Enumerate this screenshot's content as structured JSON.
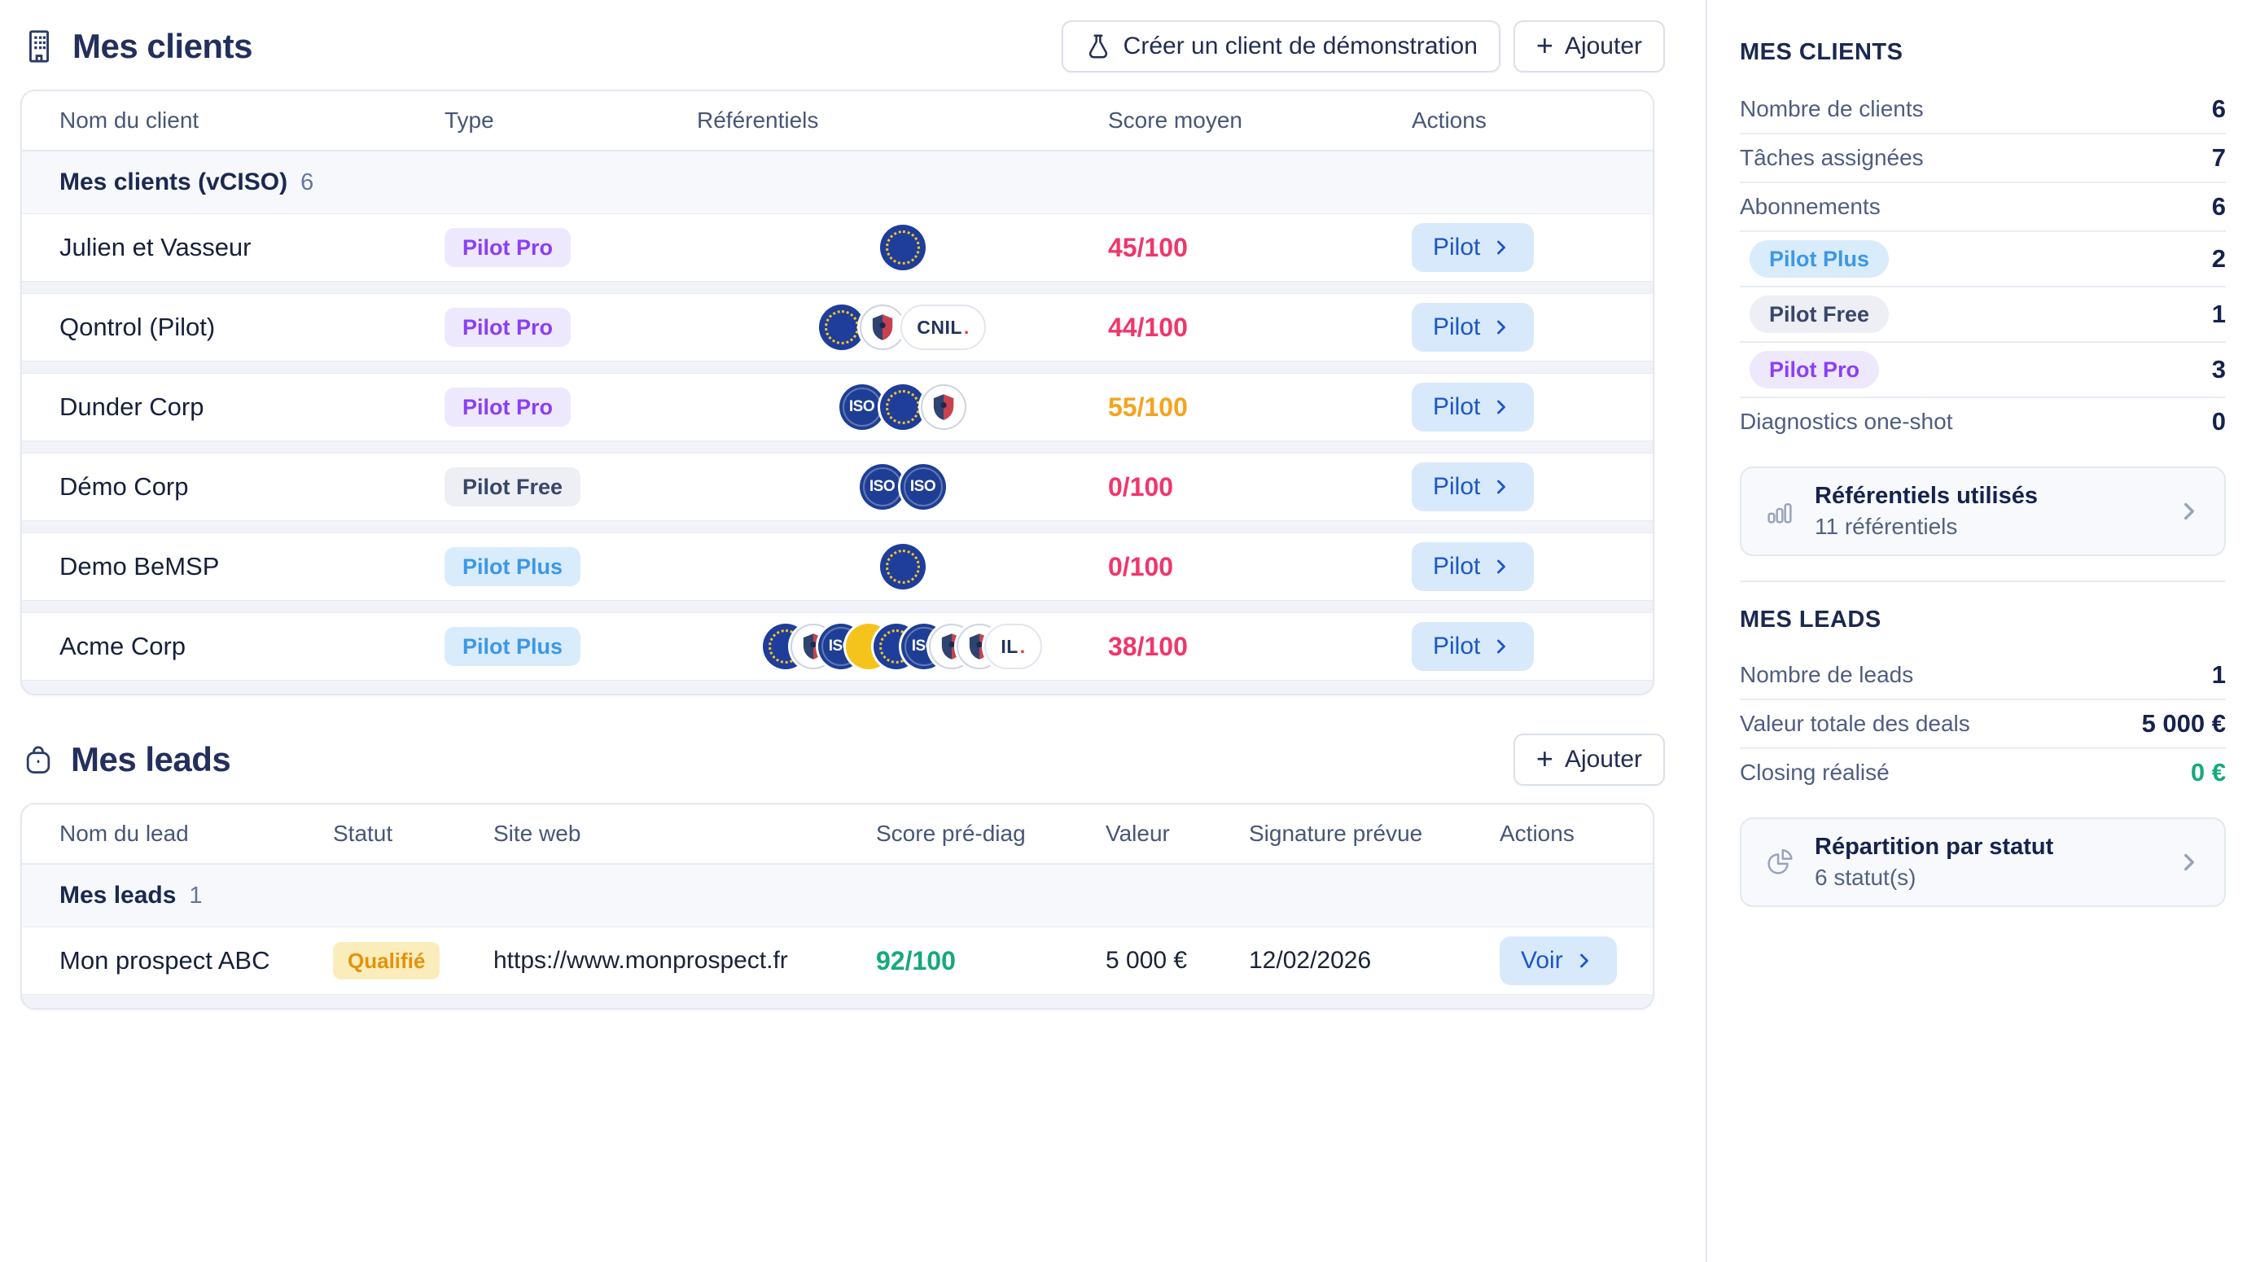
{
  "clients": {
    "title": "Mes clients",
    "buttons": {
      "demo": "Créer un client de démonstration",
      "add": "Ajouter",
      "add_plus": "+"
    },
    "table": {
      "headers": [
        "Nom du client",
        "Type",
        "Référentiels",
        "Score moyen",
        "Actions"
      ],
      "group": {
        "label": "Mes clients (vCISO)",
        "count": "6"
      },
      "rows": [
        {
          "name": "Julien et Vasseur",
          "plan": "Pilot Pro",
          "plan_variant": "pro",
          "refs": [
            "eu"
          ],
          "score": "45/100",
          "score_level": "low",
          "action": "Pilot"
        },
        {
          "name": "Qontrol (Pilot)",
          "plan": "Pilot Pro",
          "plan_variant": "pro",
          "refs": [
            "eu",
            "shield",
            "cnil"
          ],
          "score": "44/100",
          "score_level": "low",
          "action": "Pilot"
        },
        {
          "name": "Dunder Corp",
          "plan": "Pilot Pro",
          "plan_variant": "pro",
          "refs": [
            "iso",
            "eu",
            "shield"
          ],
          "score": "55/100",
          "score_level": "mid",
          "action": "Pilot"
        },
        {
          "name": "Démo Corp",
          "plan": "Pilot Free",
          "plan_variant": "free",
          "refs": [
            "iso",
            "iso"
          ],
          "score": "0/100",
          "score_level": "low",
          "action": "Pilot"
        },
        {
          "name": "Demo BeMSP",
          "plan": "Pilot Plus",
          "plan_variant": "plus",
          "refs": [
            "eu"
          ],
          "score": "0/100",
          "score_level": "low",
          "action": "Pilot"
        },
        {
          "name": "Acme Corp",
          "plan": "Pilot Plus",
          "plan_variant": "plus",
          "refs": [
            "eu",
            "shield",
            "iso",
            "gold",
            "eu",
            "iso",
            "shield",
            "shield",
            "cnil_part"
          ],
          "score": "38/100",
          "score_level": "low",
          "action": "Pilot",
          "overlap": true
        }
      ]
    }
  },
  "leads": {
    "title": "Mes leads",
    "buttons": {
      "add": "Ajouter",
      "add_plus": "+"
    },
    "table": {
      "headers": [
        "Nom du lead",
        "Statut",
        "Site web",
        "Score pré-diag",
        "Valeur",
        "Signature prévue",
        "Actions"
      ],
      "group": {
        "label": "Mes leads",
        "count": "1"
      },
      "rows": [
        {
          "name": "Mon prospect ABC",
          "status": "Qualifié",
          "website": "https://www.monprospect.fr",
          "score": "92/100",
          "score_level": "high",
          "value": "5 000 €",
          "signature": "12/02/2026",
          "action": "Voir"
        }
      ]
    }
  },
  "sidebar": {
    "clients_header": "MES CLIENTS",
    "client_stats": [
      {
        "label": "Nombre de clients",
        "value": "6"
      },
      {
        "label": "Tâches assignées",
        "value": "7"
      },
      {
        "label": "Abonnements",
        "value": "6"
      }
    ],
    "subscriptions": [
      {
        "label": "Pilot Plus",
        "variant": "plus",
        "value": "2"
      },
      {
        "label": "Pilot Free",
        "variant": "free",
        "value": "1"
      },
      {
        "label": "Pilot Pro",
        "variant": "pro",
        "value": "3"
      }
    ],
    "diagnostics": {
      "label": "Diagnostics one-shot",
      "value": "0"
    },
    "referentiels_card": {
      "title": "Référentiels utilisés",
      "subtitle": "11 référentiels"
    },
    "leads_header": "MES LEADS",
    "lead_stats": [
      {
        "label": "Nombre de leads",
        "value": "1"
      },
      {
        "label": "Valeur totale des deals",
        "value": "5 000 €"
      },
      {
        "label": "Closing réalisé",
        "value": "0 €",
        "variant": "green"
      }
    ],
    "statuts_card": {
      "title": "Répartition par statut",
      "subtitle": "6 statut(s)"
    }
  },
  "ref_badges": {
    "iso_text": "ISO",
    "cnil_text": "CNIL",
    "cnil_partial_text": "IL",
    "dot": "."
  },
  "colors": {
    "accent_blue": "#1C57C2",
    "pink": "#F0366B",
    "orange": "#F5A31E",
    "green": "#15A97C",
    "purple": "#8A3FF6",
    "navy": "#1B2850"
  }
}
